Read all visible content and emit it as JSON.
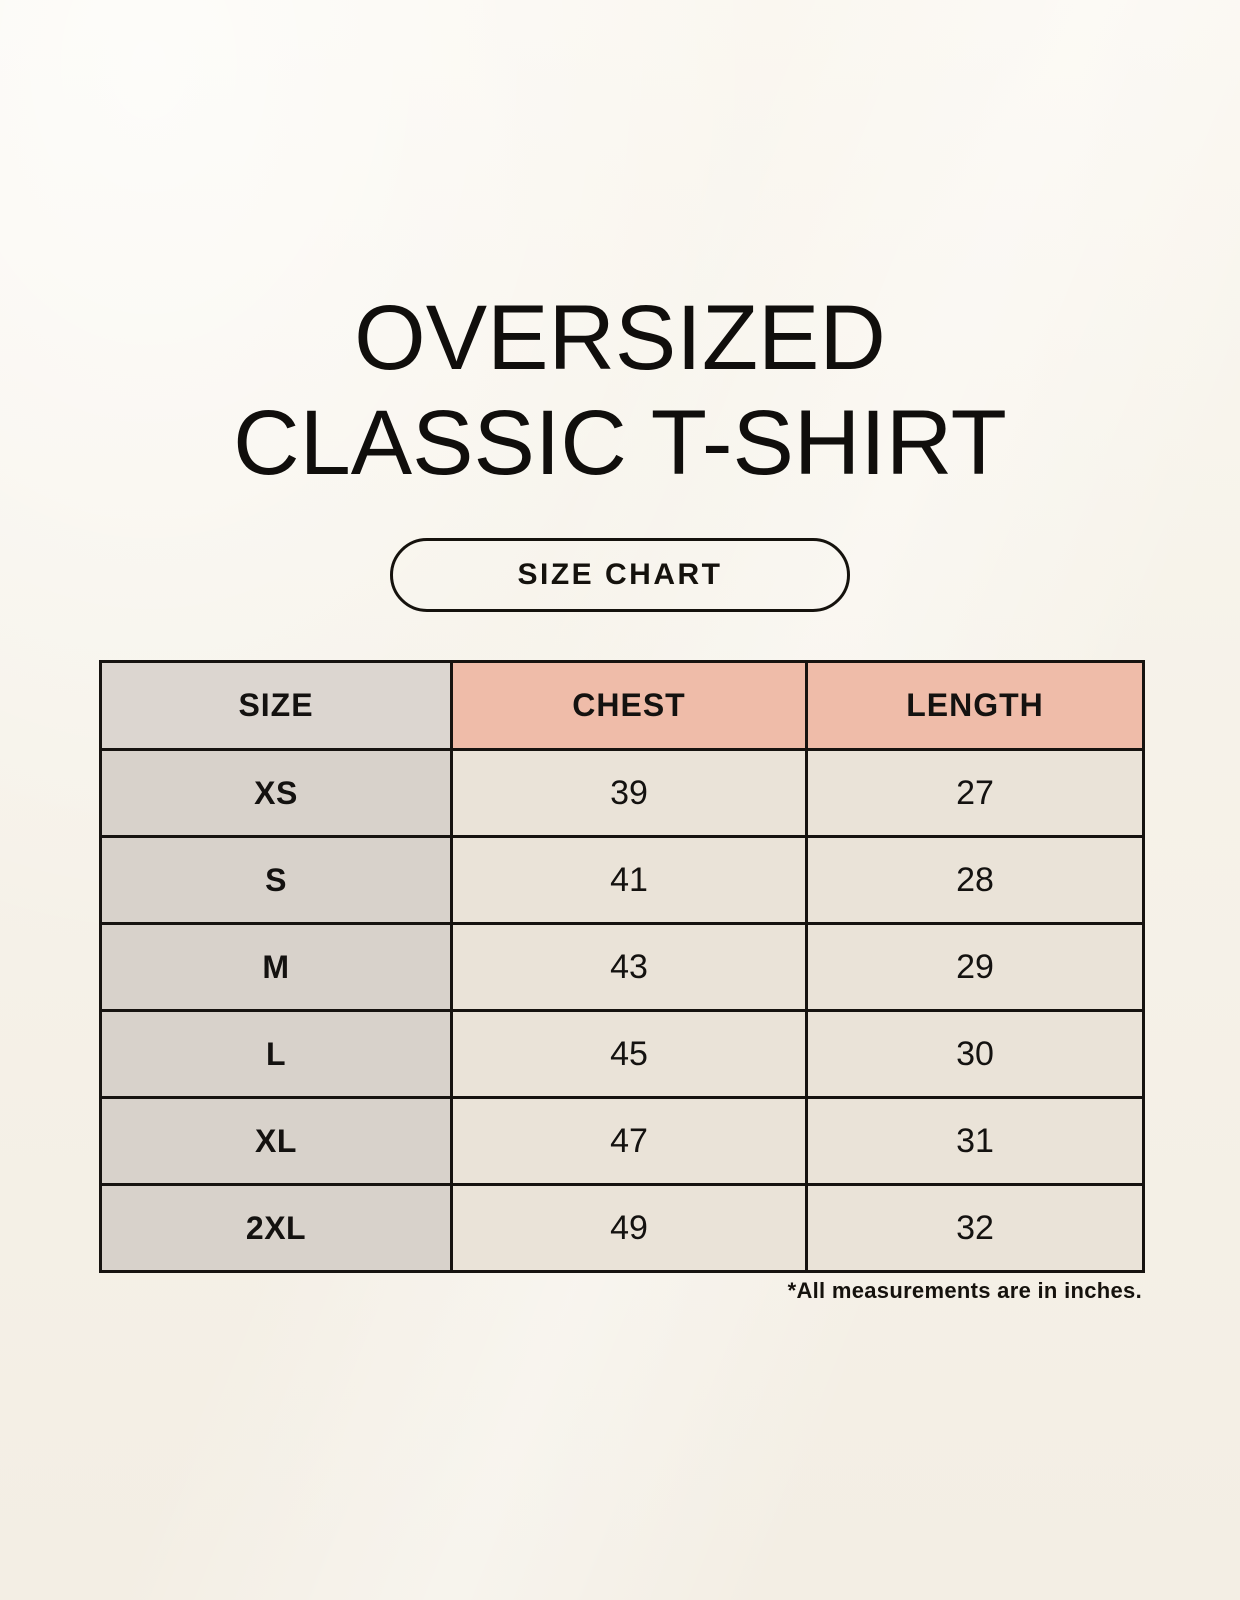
{
  "page": {
    "title_line1": "OVERSIZED",
    "title_line2": "CLASSIC T-SHIRT",
    "badge_label": "SIZE CHART",
    "footnote": "*All measurements are in inches."
  },
  "colors": {
    "background_cream": "#f6f2e9",
    "table_border_black": "#161310",
    "size_header_bg": "#dcd6d0",
    "measurement_header_bg": "#efbca9",
    "size_column_bg": "#d8d2cb",
    "data_cell_bg": "#eae3d8",
    "text": "#141210"
  },
  "size_chart": {
    "columns": [
      "SIZE",
      "CHEST",
      "LENGTH"
    ],
    "rows": [
      {
        "size": "XS",
        "chest": "39",
        "length": "27"
      },
      {
        "size": "S",
        "chest": "41",
        "length": "28"
      },
      {
        "size": "M",
        "chest": "43",
        "length": "29"
      },
      {
        "size": "L",
        "chest": "45",
        "length": "30"
      },
      {
        "size": "XL",
        "chest": "47",
        "length": "31"
      },
      {
        "size": "2XL",
        "chest": "49",
        "length": "32"
      }
    ],
    "units": "inches"
  }
}
